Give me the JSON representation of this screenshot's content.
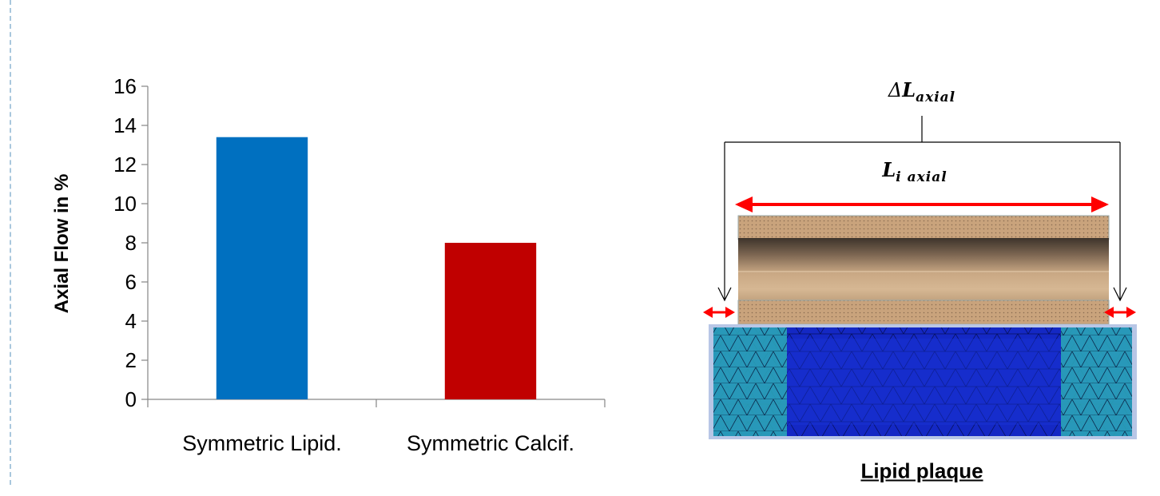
{
  "chart_data": {
    "type": "bar",
    "categories": [
      "Symmetric Lipid.",
      "Symmetric Calcif."
    ],
    "values": [
      13.4,
      8.0
    ],
    "colors": [
      "#0070c0",
      "#c00000"
    ],
    "title": "",
    "xlabel": "",
    "ylabel": "Axial Flow in %",
    "ylim": [
      0,
      16
    ],
    "yticks": [
      0,
      2,
      4,
      6,
      8,
      10,
      12,
      14,
      16
    ],
    "grid": false,
    "legend": "none"
  },
  "figure": {
    "delta_symbol": "Δ",
    "delta_L": "L",
    "delta_sub": "axial",
    "li_L": "L",
    "li_sub": "i axial",
    "caption": "Lipid plaque",
    "arrow_color": "#ff0000",
    "plaque_color": "#c4a07a",
    "mesh_color": "#1020c8"
  }
}
